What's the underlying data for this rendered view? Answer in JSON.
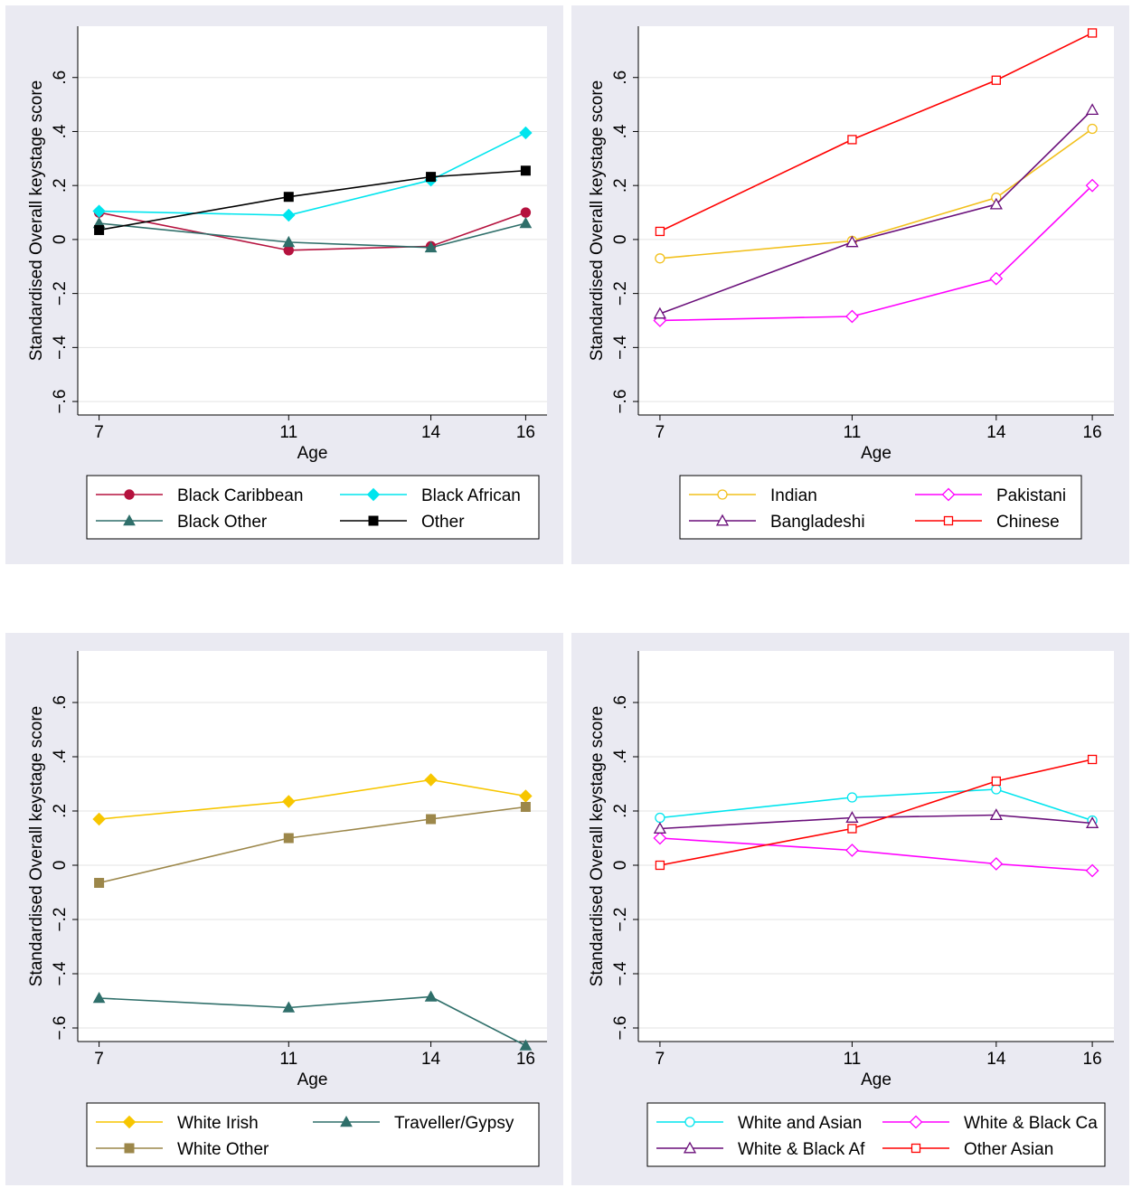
{
  "chart_data": [
    {
      "type": "line",
      "xlabel": "Age",
      "ylabel": "Standardised Overall keystage score",
      "x": [
        7,
        11,
        14,
        16
      ],
      "xticks": [
        "7",
        "11",
        "14",
        "16"
      ],
      "ylim": [
        -0.6,
        0.6
      ],
      "yticks": [
        "−.6",
        "−.4",
        "−.2",
        "0",
        ".2",
        ".4",
        ".6"
      ],
      "ytick_values": [
        -0.6,
        -0.4,
        -0.2,
        0,
        0.2,
        0.4,
        0.6
      ],
      "grid": true,
      "legend_position": "bottom",
      "series": [
        {
          "name": "Black Caribbean",
          "color": "#b5123e",
          "marker": "circle-filled",
          "values": [
            0.1,
            -0.04,
            -0.025,
            0.1
          ]
        },
        {
          "name": "Black African",
          "color": "#00e5ee",
          "marker": "diamond-filled",
          "values": [
            0.105,
            0.09,
            0.22,
            0.395
          ]
        },
        {
          "name": "Black Other",
          "color": "#2f6f6a",
          "marker": "triangle-filled",
          "values": [
            0.06,
            -0.01,
            -0.03,
            0.06
          ]
        },
        {
          "name": "Other",
          "color": "#000000",
          "marker": "square-filled",
          "values": [
            0.035,
            0.158,
            0.232,
            0.255
          ]
        }
      ]
    },
    {
      "type": "line",
      "xlabel": "Age",
      "ylabel": "Standardised Overall keystage score",
      "x": [
        7,
        11,
        14,
        16
      ],
      "xticks": [
        "7",
        "11",
        "14",
        "16"
      ],
      "ylim": [
        -0.6,
        0.6
      ],
      "yticks": [
        "−.6",
        "−.4",
        "−.2",
        "0",
        ".2",
        ".4",
        ".6"
      ],
      "ytick_values": [
        -0.6,
        -0.4,
        -0.2,
        0,
        0.2,
        0.4,
        0.6
      ],
      "grid": true,
      "legend_position": "bottom",
      "series": [
        {
          "name": "Indian",
          "color": "#f2c01c",
          "marker": "circle-hollow",
          "values": [
            -0.07,
            -0.005,
            0.155,
            0.41
          ]
        },
        {
          "name": "Pakistani",
          "color": "#ff00ff",
          "marker": "diamond-hollow",
          "values": [
            -0.3,
            -0.285,
            -0.145,
            0.2
          ]
        },
        {
          "name": "Bangladeshi",
          "color": "#6a0f7a",
          "marker": "triangle-hollow",
          "values": [
            -0.275,
            -0.01,
            0.13,
            0.48
          ]
        },
        {
          "name": "Chinese",
          "color": "#ff0000",
          "marker": "square-hollow",
          "values": [
            0.03,
            0.37,
            0.59,
            0.765
          ]
        }
      ]
    },
    {
      "type": "line",
      "xlabel": "Age",
      "ylabel": "Standardised Overall keystage score",
      "x": [
        7,
        11,
        14,
        16
      ],
      "xticks": [
        "7",
        "11",
        "14",
        "16"
      ],
      "ylim": [
        -0.6,
        0.6
      ],
      "yticks": [
        "−.6",
        "−.4",
        "−.2",
        "0",
        ".2",
        ".4",
        ".6"
      ],
      "ytick_values": [
        -0.6,
        -0.4,
        -0.2,
        0,
        0.2,
        0.4,
        0.6
      ],
      "grid": true,
      "legend_position": "bottom",
      "series": [
        {
          "name": "White Irish",
          "color": "#f7c600",
          "marker": "diamond-filled",
          "values": [
            0.17,
            0.235,
            0.315,
            0.255
          ]
        },
        {
          "name": "Traveller/Gypsy",
          "color": "#2f6f6a",
          "marker": "triangle-filled",
          "values": [
            -0.49,
            -0.525,
            -0.485,
            -0.665
          ]
        },
        {
          "name": "White Other",
          "color": "#9c874a",
          "marker": "square-filled",
          "values": [
            -0.065,
            0.1,
            0.17,
            0.215
          ]
        }
      ]
    },
    {
      "type": "line",
      "xlabel": "Age",
      "ylabel": "Standardised Overall keystage score",
      "x": [
        7,
        11,
        14,
        16
      ],
      "xticks": [
        "7",
        "11",
        "14",
        "16"
      ],
      "ylim": [
        -0.6,
        0.6
      ],
      "yticks": [
        "−.6",
        "−.4",
        "−.2",
        "0",
        ".2",
        ".4",
        ".6"
      ],
      "ytick_values": [
        -0.6,
        -0.4,
        -0.2,
        0,
        0.2,
        0.4,
        0.6
      ],
      "grid": true,
      "legend_position": "bottom",
      "series": [
        {
          "name": "White and Asian",
          "color": "#00e5ee",
          "marker": "circle-hollow",
          "values": [
            0.175,
            0.25,
            0.28,
            0.165
          ]
        },
        {
          "name": "White & Black Ca",
          "color": "#ff00ff",
          "marker": "diamond-hollow",
          "values": [
            0.1,
            0.055,
            0.005,
            -0.02
          ]
        },
        {
          "name": "White & Black Af",
          "color": "#6a0f7a",
          "marker": "triangle-hollow",
          "values": [
            0.135,
            0.175,
            0.185,
            0.155
          ]
        },
        {
          "name": "Other Asian",
          "color": "#ff0000",
          "marker": "square-hollow",
          "values": [
            0.0,
            0.135,
            0.31,
            0.39
          ]
        }
      ]
    }
  ]
}
